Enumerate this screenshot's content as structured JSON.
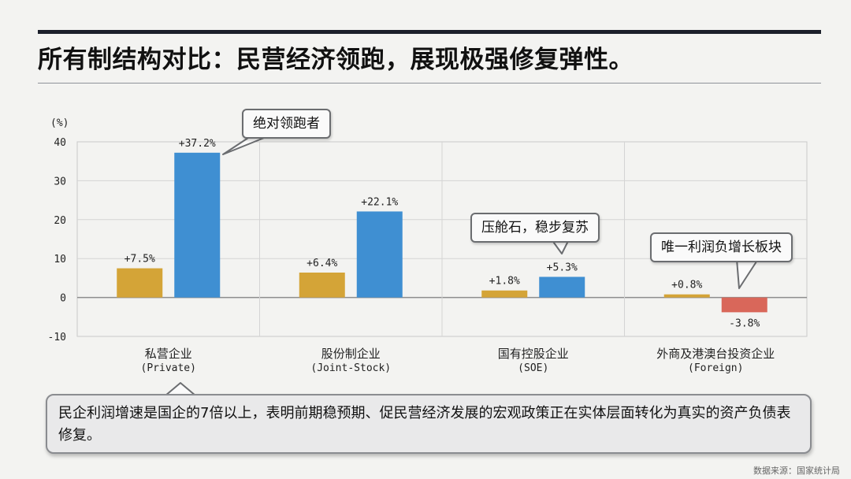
{
  "title": "所有制结构对比：民营经济领跑，展现极强修复弹性。",
  "chart_data": {
    "type": "bar",
    "unit_label": "(%)",
    "categories": [
      {
        "name": "私营企业",
        "sub": "(Private)"
      },
      {
        "name": "股份制企业",
        "sub": "(Joint-Stock)"
      },
      {
        "name": "国有控股企业",
        "sub": "(SOE)"
      },
      {
        "name": "外商及港澳台投资企业",
        "sub": "(Foreign)"
      }
    ],
    "series": [
      {
        "values": [
          7.5,
          6.4,
          1.8,
          0.8
        ],
        "labels": [
          "+7.5%",
          "+6.4%",
          "+1.8%",
          "+0.8%"
        ],
        "color": "#d4a437"
      },
      {
        "values": [
          37.2,
          22.1,
          5.3,
          -3.8
        ],
        "labels": [
          "+37.2%",
          "+22.1%",
          "+5.3%",
          "-3.8%"
        ],
        "color": "#3f8fd2",
        "negative_color": "#d9675a"
      }
    ],
    "yticks": [
      40,
      30,
      20,
      10,
      0,
      -10
    ],
    "ylim": [
      -10,
      40
    ],
    "grid": true
  },
  "callouts": {
    "leader": "绝对领跑者",
    "ballast": "压舱石，稳步复苏",
    "only_negative": "唯一利润负增长板块"
  },
  "note": "民企利润增速是国企的7倍以上，表明前期稳预期、促民营经济发展的宏观政策正在实体层面转化为真实的资产负债表修复。",
  "source": "数据来源：国家统计局"
}
